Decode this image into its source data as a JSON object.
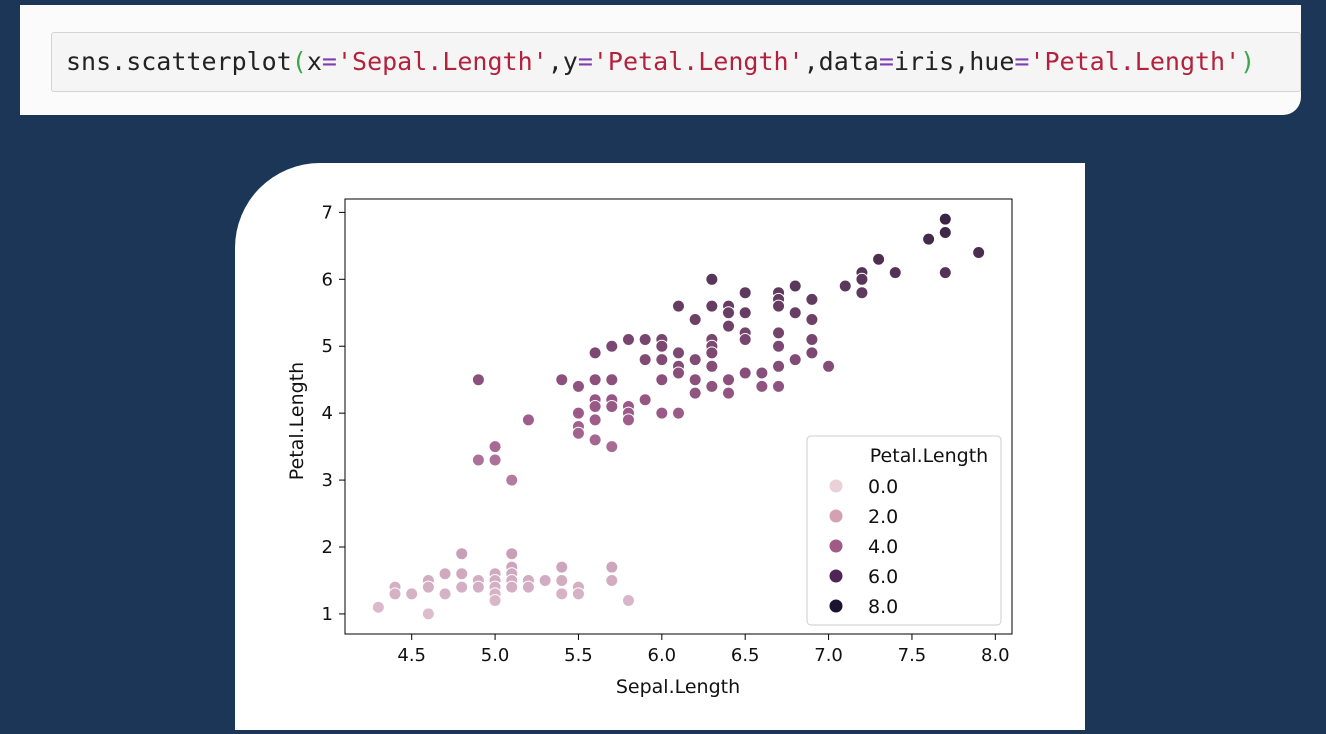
{
  "code": {
    "tokens": [
      {
        "t": "sns.scatterplot",
        "c": "tok-name"
      },
      {
        "t": "(",
        "c": "tok-paren"
      },
      {
        "t": "x",
        "c": "tok-name"
      },
      {
        "t": "=",
        "c": "tok-op"
      },
      {
        "t": "'Sepal.Length'",
        "c": "tok-str"
      },
      {
        "t": ",",
        "c": "tok-punc"
      },
      {
        "t": "y",
        "c": "tok-name"
      },
      {
        "t": "=",
        "c": "tok-op"
      },
      {
        "t": "'Petal.Length'",
        "c": "tok-str"
      },
      {
        "t": ",",
        "c": "tok-punc"
      },
      {
        "t": "data",
        "c": "tok-name"
      },
      {
        "t": "=",
        "c": "tok-op"
      },
      {
        "t": "iris",
        "c": "tok-name"
      },
      {
        "t": ",",
        "c": "tok-punc"
      },
      {
        "t": "hue",
        "c": "tok-name"
      },
      {
        "t": "=",
        "c": "tok-op"
      },
      {
        "t": "'Petal.Length'",
        "c": "tok-str"
      },
      {
        "t": ")",
        "c": "tok-paren"
      }
    ]
  },
  "chart_data": {
    "type": "scatter",
    "xlabel": "Sepal.Length",
    "ylabel": "Petal.Length",
    "xlim": [
      4.1,
      8.1
    ],
    "ylim": [
      0.7,
      7.2
    ],
    "xticks": [
      "4.5",
      "5.0",
      "5.5",
      "6.0",
      "6.5",
      "7.0",
      "7.5",
      "8.0"
    ],
    "yticks": [
      "1",
      "2",
      "3",
      "4",
      "5",
      "6",
      "7"
    ],
    "grid": false,
    "legend": {
      "title": "Petal.Length",
      "placement": "lower-right",
      "entries": [
        {
          "label": "0.0",
          "color": "#ead0d7"
        },
        {
          "label": "2.0",
          "color": "#d4a1b3"
        },
        {
          "label": "4.0",
          "color": "#a05a86"
        },
        {
          "label": "6.0",
          "color": "#4e2655"
        },
        {
          "label": "8.0",
          "color": "#1b1330"
        }
      ]
    },
    "hue_range": [
      0,
      8
    ],
    "colors": {
      "hue_low": "#f2dde3",
      "hue_mid": "#9c5a88",
      "hue_high": "#14102a"
    },
    "points": [
      [
        4.3,
        1.1
      ],
      [
        4.4,
        1.4
      ],
      [
        4.4,
        1.3
      ],
      [
        4.5,
        1.3
      ],
      [
        4.6,
        1.5
      ],
      [
        4.6,
        1.4
      ],
      [
        4.6,
        1.0
      ],
      [
        4.7,
        1.6
      ],
      [
        4.7,
        1.3
      ],
      [
        4.8,
        1.9
      ],
      [
        4.8,
        1.6
      ],
      [
        4.8,
        1.4
      ],
      [
        4.9,
        1.5
      ],
      [
        4.9,
        1.4
      ],
      [
        5.0,
        1.6
      ],
      [
        5.0,
        1.5
      ],
      [
        5.0,
        1.4
      ],
      [
        5.0,
        1.3
      ],
      [
        5.0,
        1.2
      ],
      [
        5.1,
        1.9
      ],
      [
        5.1,
        1.7
      ],
      [
        5.1,
        1.6
      ],
      [
        5.1,
        1.5
      ],
      [
        5.1,
        1.4
      ],
      [
        5.2,
        1.5
      ],
      [
        5.2,
        1.4
      ],
      [
        5.3,
        1.5
      ],
      [
        5.4,
        1.7
      ],
      [
        5.4,
        1.5
      ],
      [
        5.4,
        1.3
      ],
      [
        5.5,
        1.4
      ],
      [
        5.5,
        1.3
      ],
      [
        5.7,
        1.7
      ],
      [
        5.7,
        1.5
      ],
      [
        5.8,
        1.2
      ],
      [
        4.9,
        4.5
      ],
      [
        4.9,
        3.3
      ],
      [
        5.0,
        3.5
      ],
      [
        5.0,
        3.3
      ],
      [
        5.1,
        3.0
      ],
      [
        5.2,
        3.9
      ],
      [
        5.4,
        4.5
      ],
      [
        5.5,
        4.4
      ],
      [
        5.5,
        4.0
      ],
      [
        5.5,
        3.8
      ],
      [
        5.5,
        3.7
      ],
      [
        5.6,
        4.9
      ],
      [
        5.6,
        4.5
      ],
      [
        5.6,
        4.2
      ],
      [
        5.6,
        4.1
      ],
      [
        5.6,
        3.9
      ],
      [
        5.6,
        3.6
      ],
      [
        5.7,
        5.0
      ],
      [
        5.7,
        4.5
      ],
      [
        5.7,
        4.2
      ],
      [
        5.7,
        4.1
      ],
      [
        5.7,
        3.5
      ],
      [
        5.8,
        5.1
      ],
      [
        5.8,
        4.1
      ],
      [
        5.8,
        4.0
      ],
      [
        5.8,
        3.9
      ],
      [
        5.9,
        5.1
      ],
      [
        5.9,
        4.8
      ],
      [
        5.9,
        4.2
      ],
      [
        6.0,
        5.1
      ],
      [
        6.0,
        5.0
      ],
      [
        6.0,
        4.8
      ],
      [
        6.0,
        4.5
      ],
      [
        6.0,
        4.0
      ],
      [
        6.1,
        5.6
      ],
      [
        6.1,
        4.9
      ],
      [
        6.1,
        4.7
      ],
      [
        6.1,
        4.6
      ],
      [
        6.1,
        4.0
      ],
      [
        6.2,
        5.4
      ],
      [
        6.2,
        4.8
      ],
      [
        6.2,
        4.5
      ],
      [
        6.2,
        4.3
      ],
      [
        6.3,
        6.0
      ],
      [
        6.3,
        5.6
      ],
      [
        6.3,
        5.1
      ],
      [
        6.3,
        5.0
      ],
      [
        6.3,
        4.9
      ],
      [
        6.3,
        4.7
      ],
      [
        6.3,
        4.4
      ],
      [
        6.4,
        5.6
      ],
      [
        6.4,
        5.5
      ],
      [
        6.4,
        5.3
      ],
      [
        6.4,
        4.5
      ],
      [
        6.4,
        4.3
      ],
      [
        6.5,
        5.8
      ],
      [
        6.5,
        5.5
      ],
      [
        6.5,
        5.2
      ],
      [
        6.5,
        5.1
      ],
      [
        6.5,
        4.6
      ],
      [
        6.6,
        4.6
      ],
      [
        6.6,
        4.4
      ],
      [
        6.7,
        5.8
      ],
      [
        6.7,
        5.7
      ],
      [
        6.7,
        5.6
      ],
      [
        6.7,
        5.2
      ],
      [
        6.7,
        5.0
      ],
      [
        6.7,
        4.7
      ],
      [
        6.7,
        4.4
      ],
      [
        6.8,
        5.9
      ],
      [
        6.8,
        5.5
      ],
      [
        6.8,
        4.8
      ],
      [
        6.9,
        5.7
      ],
      [
        6.9,
        5.4
      ],
      [
        6.9,
        5.1
      ],
      [
        6.9,
        4.9
      ],
      [
        7.0,
        4.7
      ],
      [
        7.1,
        5.9
      ],
      [
        7.2,
        6.1
      ],
      [
        7.2,
        6.0
      ],
      [
        7.2,
        5.8
      ],
      [
        7.3,
        6.3
      ],
      [
        7.4,
        6.1
      ],
      [
        7.6,
        6.6
      ],
      [
        7.7,
        6.9
      ],
      [
        7.7,
        6.7
      ],
      [
        7.7,
        6.1
      ],
      [
        7.9,
        6.4
      ]
    ]
  }
}
